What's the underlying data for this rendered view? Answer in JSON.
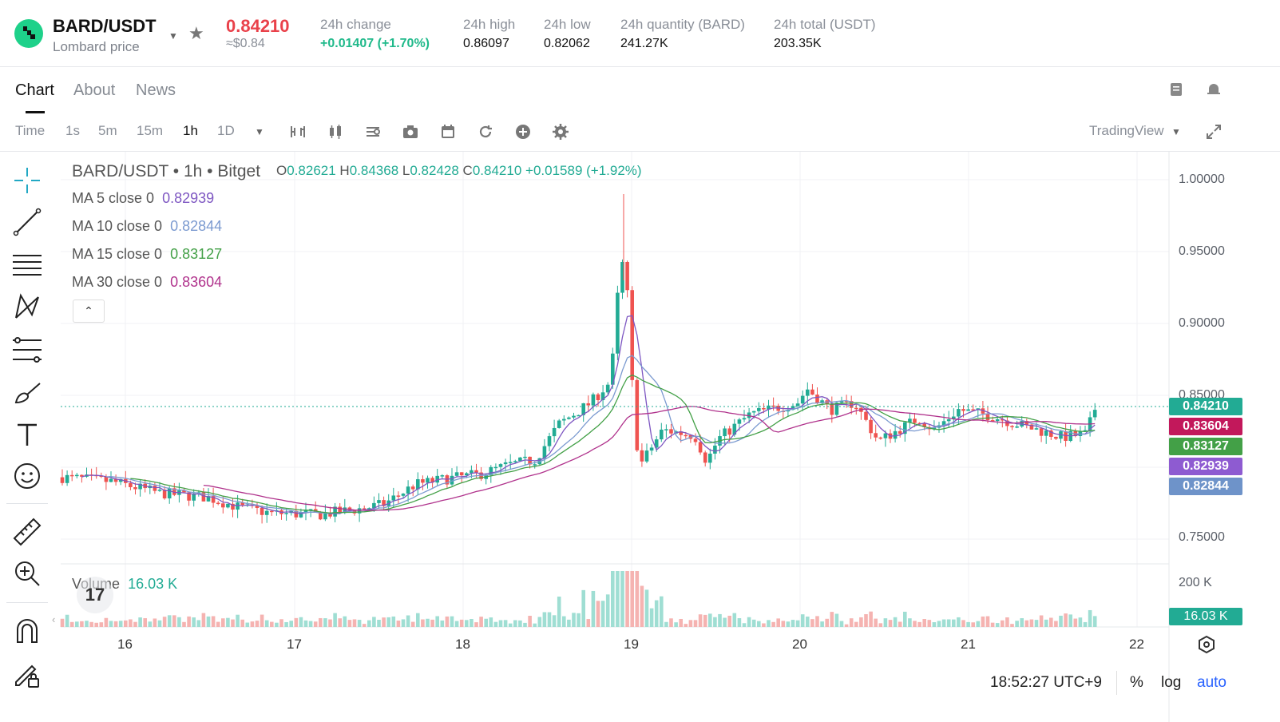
{
  "header": {
    "pair": "BARD/USDT",
    "subtitle": "Lombard price",
    "price": "0.84210",
    "price_usd": "≈$0.84",
    "stats": [
      {
        "label": "24h change",
        "value": "+0.01407 (+1.70%)",
        "color": "#1fb98a"
      },
      {
        "label": "24h high",
        "value": "0.86097"
      },
      {
        "label": "24h low",
        "value": "0.82062"
      },
      {
        "label": "24h quantity (BARD)",
        "value": "241.27K"
      },
      {
        "label": "24h total (USDT)",
        "value": "203.35K"
      }
    ]
  },
  "tabs": [
    "Chart",
    "About",
    "News"
  ],
  "toolbar": {
    "intervals": [
      "Time",
      "1s",
      "5m",
      "15m",
      "1h",
      "1D"
    ],
    "selected": "1h",
    "provider": "TradingView"
  },
  "legend": {
    "title": "BARD/USDT • 1h • Bitget",
    "o_label": "O",
    "o": "0.82621",
    "h_label": "H",
    "h": "0.84368",
    "l_label": "L",
    "l": "0.82428",
    "c_label": "C",
    "c": "0.84210",
    "change": "+0.01589 (+1.92%)",
    "ma": [
      {
        "label": "MA 5 close 0",
        "value": "0.82939",
        "color": "#7e57c2"
      },
      {
        "label": "MA 10 close 0",
        "value": "0.82844",
        "color": "#7b9ad0"
      },
      {
        "label": "MA 15 close 0",
        "value": "0.83127",
        "color": "#43a047"
      },
      {
        "label": "MA 30 close 0",
        "value": "0.83604",
        "color": "#b0328c"
      }
    ],
    "volume_label": "Volume",
    "volume_value": "16.03 K"
  },
  "y_axis": [
    "1.00000",
    "0.95000",
    "0.90000",
    "0.85000",
    "0.75000"
  ],
  "price_labels": [
    {
      "value": "0.84210",
      "color": "#22ab94"
    },
    {
      "value": "0.83604",
      "color": "#c2185b"
    },
    {
      "value": "0.83127",
      "color": "#43a047"
    },
    {
      "value": "0.82939",
      "color": "#8e5bd1"
    },
    {
      "value": "0.82844",
      "color": "#6e93c9"
    }
  ],
  "volume_axis": {
    "top": "200 K",
    "current": "16.03 K"
  },
  "x_axis": [
    "16",
    "17",
    "18",
    "19",
    "20",
    "21",
    "22"
  ],
  "footer": {
    "time": "18:52:27 UTC+9",
    "percent": "%",
    "log": "log",
    "auto": "auto"
  },
  "colors": {
    "up": "#22ab94",
    "down": "#ef5350",
    "accent": "#2962ff"
  }
}
